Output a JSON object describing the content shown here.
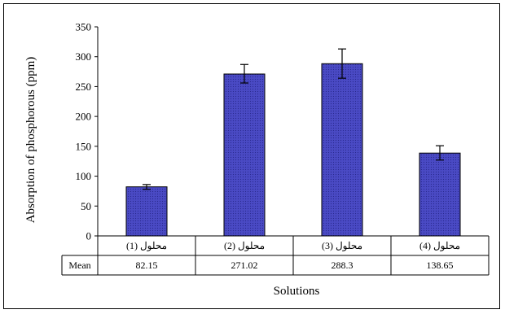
{
  "chart_data": {
    "type": "bar",
    "ylabel": "Absorption of phosphorous (ppm)",
    "xlabel": "Solutions",
    "categories": [
      "محلول (1)",
      "محلول (2)",
      "محلول (3)",
      "محلول (4)"
    ],
    "values": [
      82.15,
      271.02,
      288.3,
      138.65
    ],
    "error_bars": [
      {
        "lower": 78,
        "upper": 86
      },
      {
        "lower": 256,
        "upper": 287
      },
      {
        "lower": 264,
        "upper": 313
      },
      {
        "lower": 127,
        "upper": 151
      }
    ],
    "ylim": [
      0,
      350
    ],
    "yticks": [
      "0",
      "50",
      "100",
      "150",
      "200",
      "250",
      "300",
      "350"
    ],
    "data_table": {
      "row_label": "Mean",
      "cells": [
        "82.15",
        "271.02",
        "288.3",
        "138.65"
      ]
    },
    "bar_color": "#4040b8",
    "grid": false,
    "legend": "none"
  }
}
